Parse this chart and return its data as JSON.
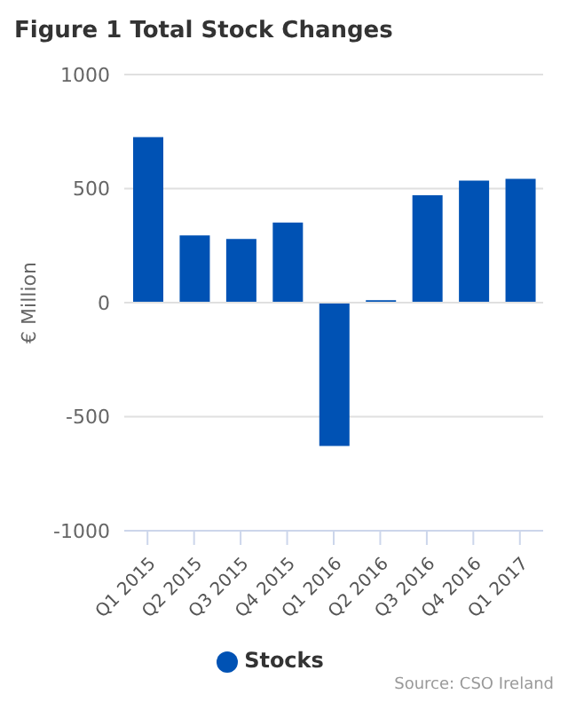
{
  "chart_data": {
    "type": "bar",
    "title": "Figure 1 Total Stock Changes",
    "ylabel": "€ Million",
    "categories": [
      "Q1 2015",
      "Q2 2015",
      "Q3 2015",
      "Q4 2015",
      "Q1 2016",
      "Q2 2016",
      "Q3 2016",
      "Q4 2016",
      "Q1 2017"
    ],
    "series": [
      {
        "name": "Stocks",
        "color": "#0052b4",
        "values": [
          726,
          295,
          279,
          351,
          -628,
          11,
          471,
          535,
          543
        ]
      }
    ],
    "ylim": [
      -1000,
      1000
    ],
    "yticks": [
      -1000,
      -500,
      0,
      500,
      1000
    ],
    "grid": "y",
    "legend": "bottom",
    "annotations": [
      "Source: CSO Ireland"
    ]
  }
}
